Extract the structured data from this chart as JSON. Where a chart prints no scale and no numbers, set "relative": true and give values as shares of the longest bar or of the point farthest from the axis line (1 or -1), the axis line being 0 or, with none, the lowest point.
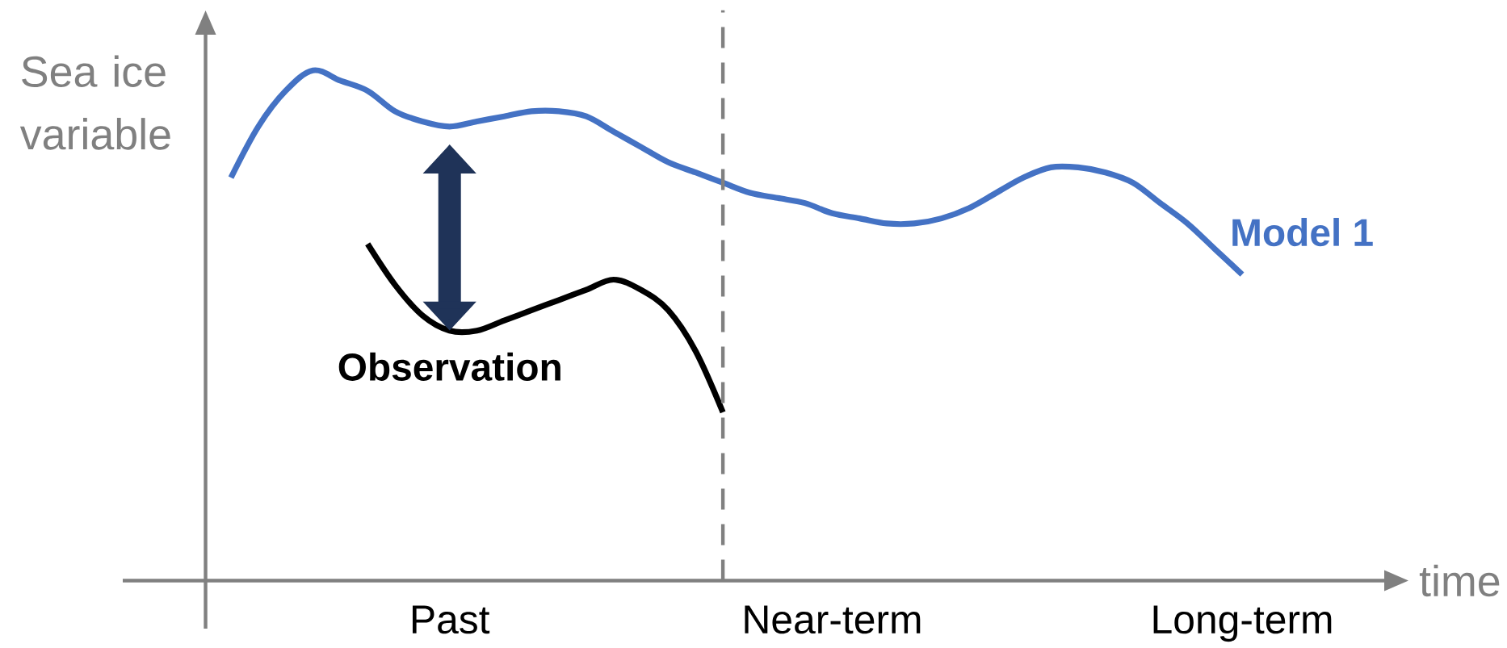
{
  "chart_data": {
    "type": "line",
    "relative": true,
    "xlabel": "time",
    "ylabel": "Sea ice variable",
    "categories": [
      null,
      null,
      null,
      null,
      null,
      null,
      null,
      null,
      "Past",
      null,
      null,
      null,
      null,
      null,
      null,
      null,
      null,
      null,
      null,
      null,
      null,
      null,
      "Near-term",
      null,
      null,
      null,
      null,
      null,
      null,
      null,
      null,
      null,
      null,
      null,
      null,
      null,
      null,
      "Long-term"
    ],
    "marker": "none",
    "line_style": "solid",
    "series": [
      {
        "name": "Model 1",
        "color": "#4472c4",
        "values": [
          0.79,
          0.89,
          0.96,
          1.0,
          0.98,
          0.96,
          0.92,
          0.9,
          0.89,
          0.9,
          0.91,
          0.92,
          0.92,
          0.91,
          0.88,
          0.85,
          0.82,
          0.8,
          0.78,
          0.76,
          0.75,
          0.74,
          0.72,
          0.71,
          0.7,
          0.7,
          0.71,
          0.73,
          0.76,
          0.79,
          0.81,
          0.81,
          0.8,
          0.78,
          0.74,
          0.7,
          0.65,
          0.6
        ]
      },
      {
        "name": "Observation",
        "color": "#000000",
        "values": [
          null,
          null,
          null,
          null,
          null,
          0.66,
          0.58,
          0.52,
          0.49,
          0.49,
          0.51,
          0.53,
          0.55,
          0.57,
          0.59,
          0.57,
          0.53,
          0.45,
          0.33,
          null,
          null,
          null,
          null,
          null,
          null,
          null,
          null,
          null,
          null,
          null,
          null,
          null,
          null,
          null,
          null,
          null,
          null,
          null
        ]
      }
    ]
  }
}
